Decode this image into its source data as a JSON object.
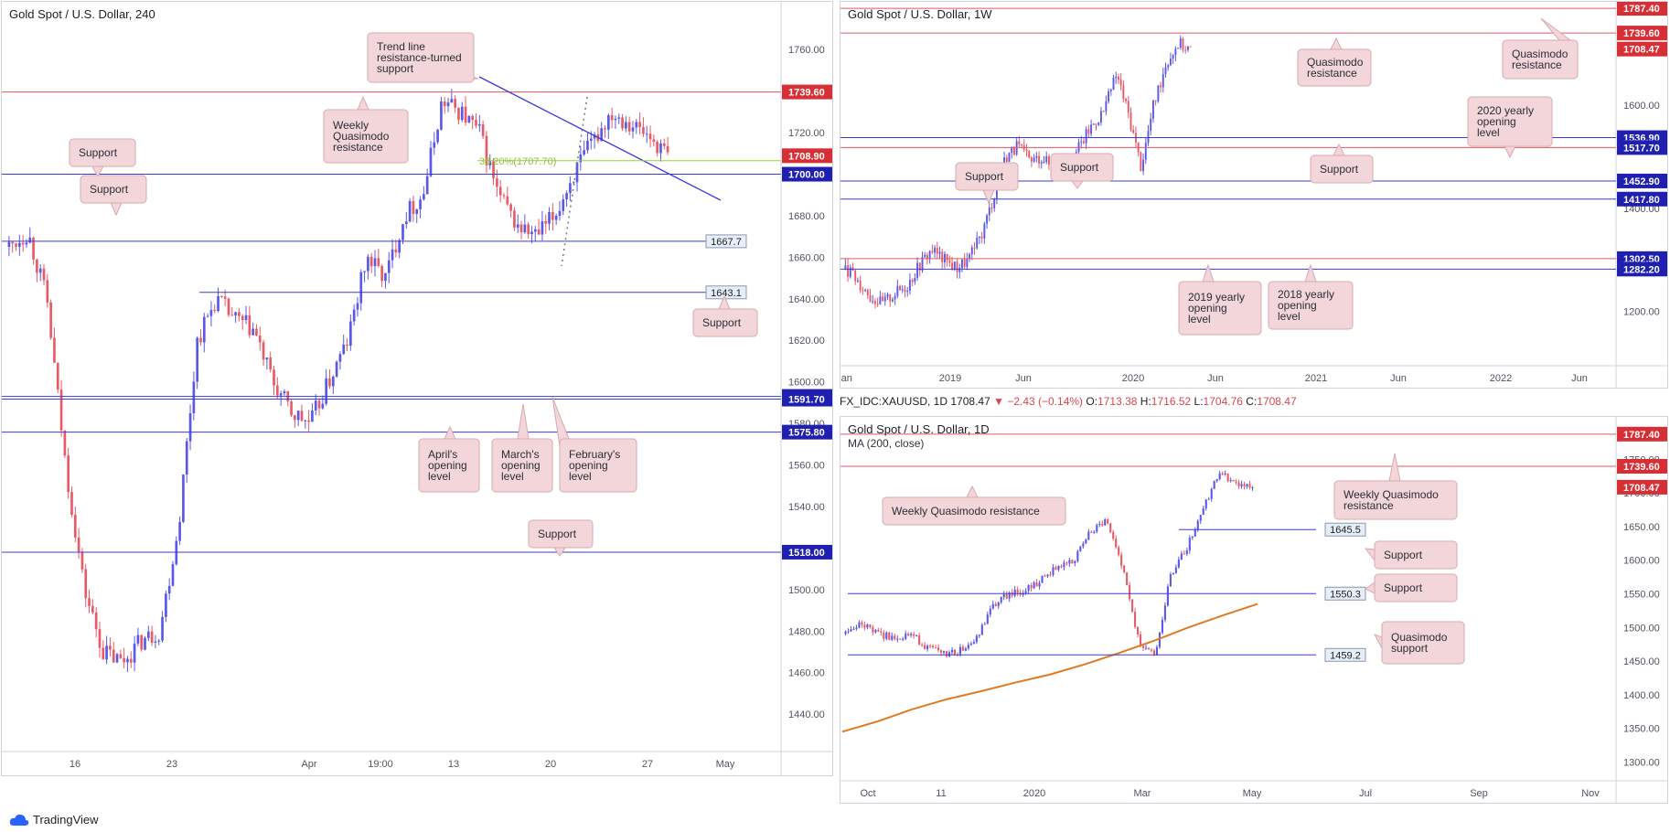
{
  "colors": {
    "up": "#5a58e8",
    "down": "#e85a66",
    "support": "#3b3bd6",
    "resistance": "#e05860",
    "fib": "#9ad040",
    "trend": "#3a3ad8",
    "ma": "#e07a22",
    "callout_bg": "#f2d6d9",
    "callout_border": "#d9a9ae",
    "tag_red": "#d62f36",
    "tag_blue": "#2020b0",
    "tag_light": "#e6eef8"
  },
  "branding": {
    "watermark": "TradingView",
    "logo_icon": "tradingview-cloud-icon"
  },
  "infobar": {
    "symbol": "FX_IDC:XAUUSD, 1D",
    "last": "1708.47",
    "change": "▼ −2.43 (−0.14%)",
    "o_label": "O:",
    "o": "1713.38",
    "h_label": "H:",
    "h": "1716.52",
    "l_label": "L:",
    "l": "1704.76",
    "c_label": "C:",
    "c": "1708.47"
  },
  "chart_data": [
    {
      "type": "candlestick",
      "title": "Gold Spot / U.S. Dollar, 240",
      "y_ticks": [
        1780,
        1760,
        1740,
        1720,
        1700,
        1680,
        1660,
        1640,
        1620,
        1600,
        1580,
        1560,
        1540,
        1520,
        1500,
        1480,
        1460,
        1440
      ],
      "ylim": [
        1422,
        1783
      ],
      "x_ticks": [
        "16",
        "23",
        "Apr",
        "19:00",
        "13",
        "20",
        "27",
        "May"
      ],
      "price_path": [
        1665,
        1672,
        1640,
        1560,
        1500,
        1470,
        1465,
        1475,
        1480,
        1530,
        1620,
        1640,
        1630,
        1625,
        1600,
        1585,
        1580,
        1600,
        1620,
        1660,
        1650,
        1680,
        1690,
        1735,
        1730,
        1720,
        1690,
        1675,
        1670,
        1680,
        1700,
        1715,
        1730,
        1725,
        1718,
        1709
      ],
      "levels": [
        {
          "value": 1739.6,
          "label": "1739.60",
          "style": "red",
          "line": "resistance"
        },
        {
          "value": 1708.9,
          "label": "1708.90",
          "style": "red"
        },
        {
          "value": 1700.0,
          "label": "1700.00",
          "style": "blue",
          "line": "support"
        },
        {
          "value": 1667.7,
          "label": "1667.7",
          "style": "light",
          "line": "support"
        },
        {
          "value": 1643.1,
          "label": "1643.1",
          "style": "light",
          "line": "support"
        },
        {
          "value": 1593.0,
          "label": "1593.00",
          "style": "blue",
          "line": "support"
        },
        {
          "value": 1591.7,
          "label": "1591.70",
          "style": "blue",
          "line": "support"
        },
        {
          "value": 1575.8,
          "label": "1575.80",
          "style": "blue",
          "line": "support"
        },
        {
          "value": 1518.0,
          "label": "1518.00",
          "style": "blue",
          "line": "support"
        }
      ],
      "fib_label": "38.20%(1707.70)",
      "annotations": [
        "Trend line resistance-turned support",
        "Weekly Quasimodo resistance",
        "Support",
        "Support",
        "Support",
        "April's opening level",
        "March's opening level",
        "February's opening level",
        "Support"
      ]
    },
    {
      "type": "candlestick",
      "title": "Gold Spot / U.S. Dollar, 1W",
      "y_ticks": [
        1800,
        1600,
        1400,
        1200
      ],
      "ylim": [
        1095,
        1800
      ],
      "x_ticks": [
        "Jan",
        "2019",
        "Jun",
        "2020",
        "Jun",
        "2021",
        "Jun",
        "2022",
        "Jun"
      ],
      "price_path": [
        1282,
        1260,
        1230,
        1215,
        1235,
        1250,
        1290,
        1320,
        1300,
        1285,
        1300,
        1345,
        1420,
        1500,
        1520,
        1490,
        1500,
        1470,
        1480,
        1520,
        1560,
        1590,
        1660,
        1580,
        1480,
        1600,
        1680,
        1720,
        1708
      ],
      "levels": [
        {
          "value": 1787.4,
          "label": "1787.40",
          "style": "red",
          "line": "resistance"
        },
        {
          "value": 1739.6,
          "label": "1739.60",
          "style": "red",
          "line": "resistance"
        },
        {
          "value": 1708.47,
          "label": "1708.47",
          "style": "red"
        },
        {
          "value": 1536.9,
          "label": "1536.90",
          "style": "blue",
          "line": "support"
        },
        {
          "value": 1517.7,
          "label": "1517.70",
          "style": "blue",
          "line": "resistance"
        },
        {
          "value": 1452.9,
          "label": "1452.90",
          "style": "blue",
          "line": "support"
        },
        {
          "value": 1417.8,
          "label": "1417.80",
          "style": "blue",
          "line": "support"
        },
        {
          "value": 1302.5,
          "label": "1302.50",
          "style": "blue",
          "line": "resistance"
        },
        {
          "value": 1282.2,
          "label": "1282.20",
          "style": "blue",
          "line": "support"
        }
      ],
      "annotations": [
        "Quasimodo resistance",
        "Quasimodo resistance",
        "2020 yearly opening level",
        "Support",
        "Support",
        "Support",
        "2019 yearly opening level",
        "2018 yearly opening level"
      ]
    },
    {
      "type": "candlestick",
      "title": "Gold Spot / U.S. Dollar, 1D",
      "legend": "MA (200, close)",
      "y_ticks": [
        1750,
        1700,
        1650,
        1600,
        1550,
        1500,
        1450,
        1400,
        1350,
        1300
      ],
      "ylim": [
        1272,
        1813
      ],
      "x_ticks": [
        "Oct",
        "11",
        "2020",
        "Mar",
        "May",
        "Jul",
        "Sep",
        "Nov"
      ],
      "price_path": [
        1490,
        1505,
        1490,
        1485,
        1490,
        1470,
        1460,
        1465,
        1480,
        1530,
        1550,
        1555,
        1570,
        1590,
        1600,
        1640,
        1660,
        1590,
        1480,
        1460,
        1580,
        1620,
        1680,
        1730,
        1715,
        1708
      ],
      "ma_path": [
        1345,
        1360,
        1378,
        1393,
        1405,
        1418,
        1430,
        1445,
        1462,
        1480,
        1500,
        1518,
        1535
      ],
      "levels": [
        {
          "value": 1787.4,
          "label": "1787.40",
          "style": "red",
          "line": "resistance"
        },
        {
          "value": 1739.6,
          "label": "1739.60",
          "style": "red",
          "line": "resistance"
        },
        {
          "value": 1708.47,
          "label": "1708.47",
          "style": "red"
        },
        {
          "value": 1645.5,
          "label": "1645.5",
          "style": "light",
          "line": "support"
        },
        {
          "value": 1550.3,
          "label": "1550.3",
          "style": "light",
          "line": "support"
        },
        {
          "value": 1459.2,
          "label": "1459.2",
          "style": "light",
          "line": "support"
        }
      ],
      "annotations": [
        "Weekly Quasimodo resistance",
        "Weekly Quasimodo resistance",
        "Support",
        "Support",
        "Quasimodo support"
      ]
    }
  ]
}
